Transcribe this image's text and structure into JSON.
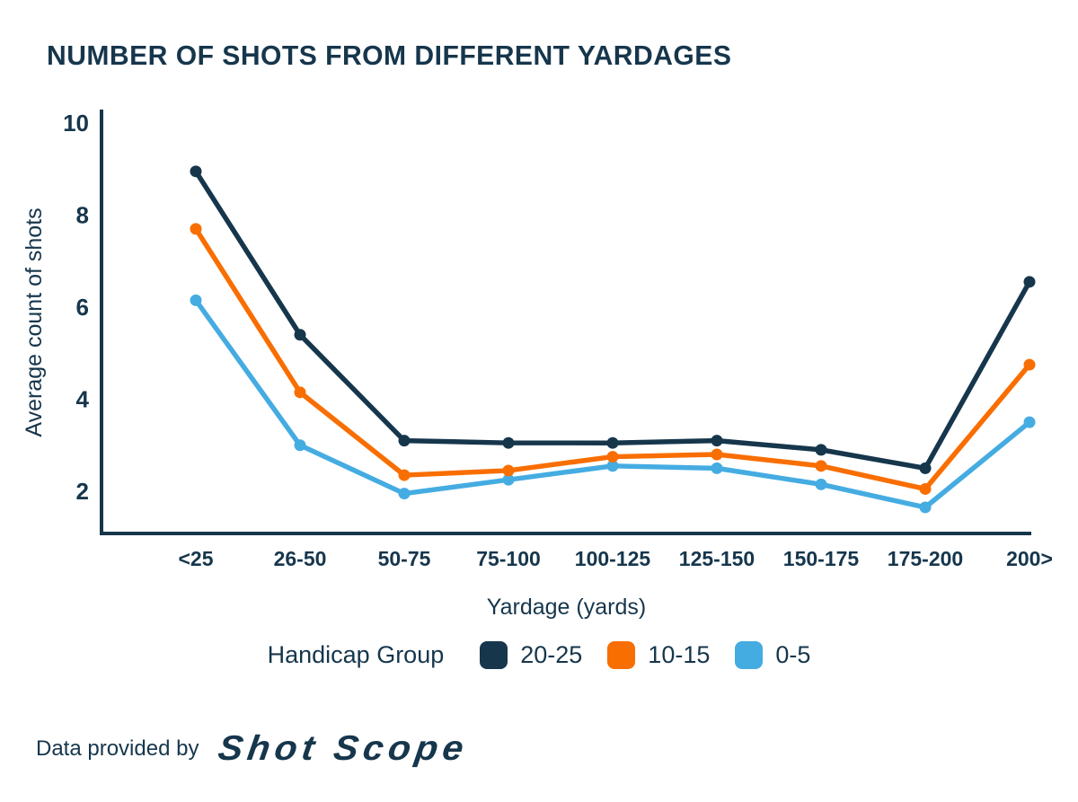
{
  "title": "NUMBER OF SHOTS FROM DIFFERENT YARDAGES",
  "chart_data": {
    "type": "line",
    "categories": [
      "<25",
      "26-50",
      "50-75",
      "75-100",
      "100-125",
      "125-150",
      "150-175",
      "175-200",
      "200>"
    ],
    "series": [
      {
        "name": "20-25",
        "color": "#16364C",
        "values": [
          8.95,
          5.4,
          3.1,
          3.05,
          3.05,
          3.1,
          2.9,
          2.5,
          6.55
        ]
      },
      {
        "name": "10-15",
        "color": "#F96E00",
        "values": [
          7.7,
          4.15,
          2.35,
          2.45,
          2.75,
          2.8,
          2.55,
          2.05,
          4.75
        ]
      },
      {
        "name": "0-5",
        "color": "#45ACE2",
        "values": [
          6.15,
          3.0,
          1.95,
          2.25,
          2.55,
          2.5,
          2.15,
          1.65,
          3.5
        ]
      }
    ],
    "title": "NUMBER OF SHOTS FROM DIFFERENT YARDAGES",
    "xlabel": "Yardage (yards)",
    "ylabel": "Average count of shots",
    "yticks": [
      2,
      4,
      6,
      8,
      10
    ],
    "ylim": [
      1.05,
      10.3
    ],
    "grid": false,
    "legend_title": "Handicap Group",
    "legend_position": "bottom",
    "marker": "circle"
  },
  "legend": {
    "title": "Handicap Group",
    "items": [
      {
        "label": "20-25",
        "color": "#16364C"
      },
      {
        "label": "10-15",
        "color": "#F96E00"
      },
      {
        "label": "0-5",
        "color": "#45ACE2"
      }
    ]
  },
  "footer": {
    "prefix": "Data provided by",
    "brand": "Shot Scope"
  },
  "colors": {
    "navy": "#16364C",
    "orange": "#F96E00",
    "blue": "#45ACE2",
    "background": "#FFFFFF"
  }
}
